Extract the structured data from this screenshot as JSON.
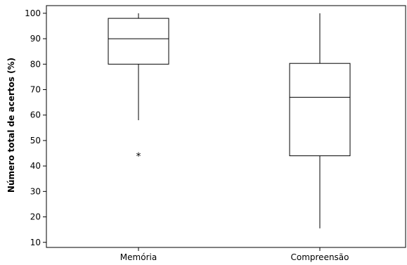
{
  "chart_data": {
    "type": "boxplot",
    "title": "",
    "xlabel": "",
    "ylabel": "Número total de acertos (%)",
    "ylim": [
      8,
      103
    ],
    "yticks": [
      10,
      20,
      30,
      40,
      50,
      60,
      70,
      80,
      90,
      100
    ],
    "categories": [
      "Memória",
      "Compreensão"
    ],
    "series": [
      {
        "category": "Memória",
        "whisker_low": 58,
        "q1": 80,
        "median": 90,
        "q3": 98,
        "whisker_high": 100,
        "outliers": [
          45
        ]
      },
      {
        "category": "Compreensão",
        "whisker_low": 15.5,
        "q1": 44,
        "median": 67,
        "q3": 80.3,
        "whisker_high": 100,
        "outliers": []
      }
    ],
    "outlier_symbol": "*",
    "grid": false,
    "legend": "none"
  }
}
